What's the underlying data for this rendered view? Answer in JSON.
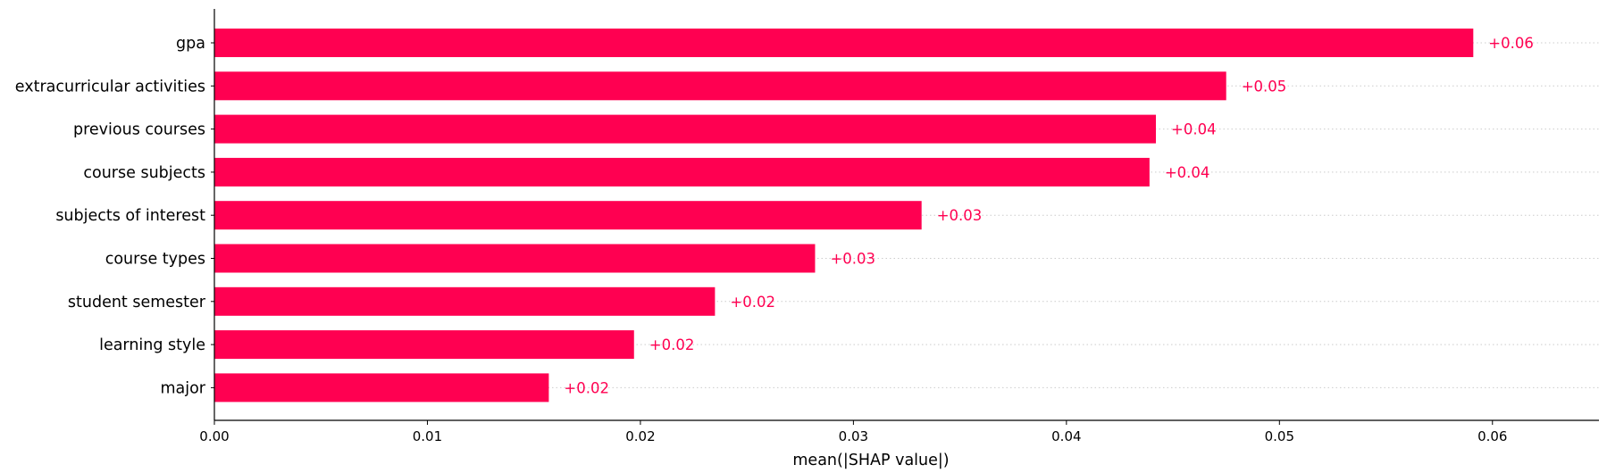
{
  "chart_data": {
    "type": "bar",
    "orientation": "horizontal",
    "categories": [
      "gpa",
      "extracurricular activities",
      "previous courses",
      "course subjects",
      "subjects of interest",
      "course types",
      "student semester",
      "learning style",
      "major"
    ],
    "values": [
      0.0591,
      0.0475,
      0.0442,
      0.0439,
      0.0332,
      0.0282,
      0.0235,
      0.0197,
      0.0157
    ],
    "value_labels": [
      "+0.06",
      "+0.05",
      "+0.04",
      "+0.04",
      "+0.03",
      "+0.03",
      "+0.02",
      "+0.02",
      "+0.02"
    ],
    "xlabel": "mean(|SHAP value|)",
    "ylabel": "",
    "xlim": [
      0,
      0.065
    ],
    "xticks": [
      0.0,
      0.01,
      0.02,
      0.03,
      0.04,
      0.05,
      0.06
    ],
    "xtick_labels": [
      "0.00",
      "0.01",
      "0.02",
      "0.03",
      "0.04",
      "0.05",
      "0.06"
    ],
    "grid": "dotted horizontal guide lines per bar",
    "colors": {
      "bar": "#ff0051",
      "label": "#ff0051",
      "axis": "#000000",
      "guide": "#cccccc"
    }
  }
}
